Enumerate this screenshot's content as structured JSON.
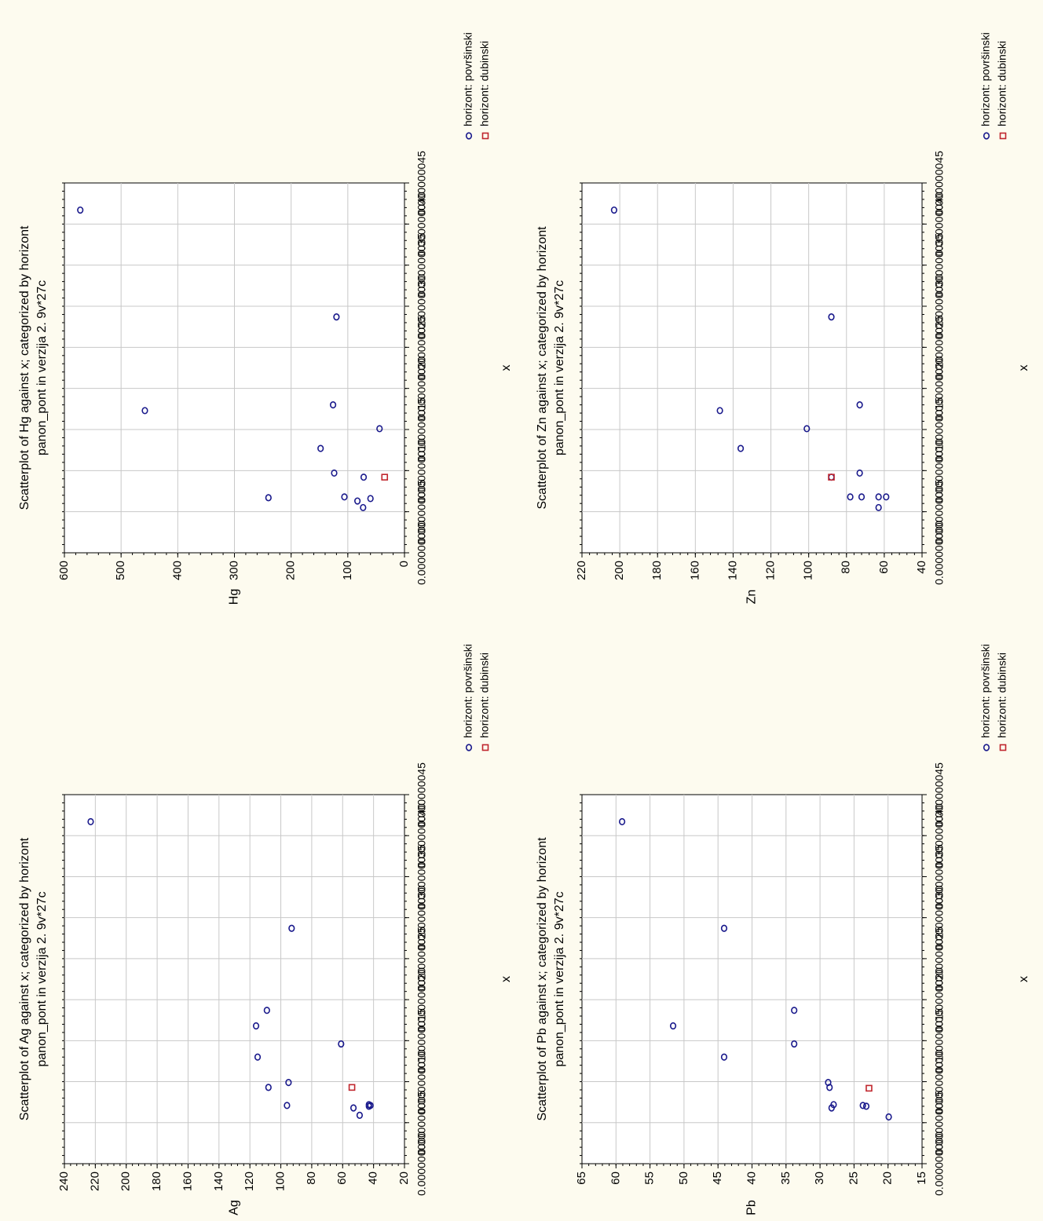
{
  "colors": {
    "panel_background": "#fdfbef",
    "plot_background": "#ffffff",
    "series_povrsinski": "#1a1a8c",
    "series_dubinski": "#c0262d",
    "grid": "#c8c8c8"
  },
  "chart_data": [
    {
      "type": "scatter",
      "title_line1": "Scatterplot of Ag against x; categorized by horizont",
      "title_line2": "panon_pont in verzija 2. 9v*27c",
      "xlabel": "x",
      "ylabel": "Ag",
      "xlim": [
        0.0,
        4.5e-08
      ],
      "ylim": [
        20,
        240
      ],
      "x_ticks": [
        "0.000000000",
        "0.000000005",
        "0.000000010",
        "0.000000015",
        "0.000000020",
        "0.000000025",
        "0.000000030",
        "0.000000035",
        "0.000000040",
        "0.000000045"
      ],
      "y_ticks": [
        "20",
        "40",
        "60",
        "80",
        "100",
        "120",
        "140",
        "160",
        "180",
        "200",
        "220",
        "240"
      ],
      "grid": true,
      "orientation": "rotated 90 degrees counter-clockwise",
      "legend_position": "right",
      "series": [
        {
          "name": "horizont: površinski",
          "marker": "circle",
          "points": [
            [
              4.17e-08,
              223
            ],
            [
              2.87e-08,
              93
            ],
            [
              1.87e-08,
              109
            ],
            [
              1.68e-08,
              116
            ],
            [
              1.46e-08,
              61
            ],
            [
              1.3e-08,
              115
            ],
            [
              9.9e-09,
              95
            ],
            [
              9.3e-09,
              108
            ],
            [
              7.1e-09,
              96
            ],
            [
              6.8e-09,
              53
            ],
            [
              5.9e-09,
              49
            ],
            [
              7.2e-09,
              43
            ],
            [
              7.1e-09,
              42
            ],
            [
              7e-09,
              43
            ]
          ]
        },
        {
          "name": "horizont: dubinski",
          "marker": "square",
          "points": [
            [
              9.3e-09,
              54
            ]
          ]
        }
      ]
    },
    {
      "type": "scatter",
      "title_line1": "Scatterplot of Hg against x; categorized by horizont",
      "title_line2": "panon_pont in verzija 2. 9v*27c",
      "xlabel": "x",
      "ylabel": "Hg",
      "xlim": [
        0.0,
        4.5e-08
      ],
      "ylim": [
        0,
        600
      ],
      "x_ticks": [
        "0.000000000",
        "0.000000005",
        "0.000000010",
        "0.000000015",
        "0.000000020",
        "0.000000025",
        "0.000000030",
        "0.000000035",
        "0.000000040",
        "0.000000045"
      ],
      "y_ticks": [
        "0",
        "100",
        "200",
        "300",
        "400",
        "500",
        "600"
      ],
      "grid": true,
      "orientation": "rotated 90 degrees counter-clockwise",
      "legend_position": "right",
      "series": [
        {
          "name": "horizont: površinski",
          "marker": "circle",
          "points": [
            [
              4.17e-08,
              572
            ],
            [
              2.87e-08,
              120
            ],
            [
              1.73e-08,
              458
            ],
            [
              1.8e-08,
              126
            ],
            [
              1.51e-08,
              44
            ],
            [
              1.27e-08,
              148
            ],
            [
              9.7e-09,
              124
            ],
            [
              9.2e-09,
              72
            ],
            [
              6.7e-09,
              240
            ],
            [
              6.8e-09,
              106
            ],
            [
              6.3e-09,
              83
            ],
            [
              6.6e-09,
              60
            ],
            [
              5.5e-09,
              73
            ]
          ]
        },
        {
          "name": "horizont: dubinski",
          "marker": "square",
          "points": [
            [
              9.2e-09,
              35
            ]
          ]
        }
      ]
    },
    {
      "type": "scatter",
      "title_line1": "Scatterplot of Pb against x; categorized by horizont",
      "title_line2": "panon_pont in verzija 2. 9v*27c",
      "xlabel": "x",
      "ylabel": "Pb",
      "xlim": [
        0.0,
        4.5e-08
      ],
      "ylim": [
        15,
        65
      ],
      "x_ticks": [
        "0.000000000",
        "0.000000005",
        "0.000000010",
        "0.000000015",
        "0.000000020",
        "0.000000025",
        "0.000000030",
        "0.000000035",
        "0.000000040",
        "0.000000045"
      ],
      "y_ticks": [
        "15",
        "20",
        "25",
        "30",
        "35",
        "40",
        "45",
        "50",
        "55",
        "60",
        "65"
      ],
      "grid": true,
      "orientation": "rotated 90 degrees counter-clockwise",
      "legend_position": "right",
      "series": [
        {
          "name": "horizont: površinski",
          "marker": "circle",
          "points": [
            [
              4.17e-08,
              59.1
            ],
            [
              2.87e-08,
              44.1
            ],
            [
              1.68e-08,
              51.6
            ],
            [
              1.87e-08,
              33.8
            ],
            [
              1.46e-08,
              33.8
            ],
            [
              1.3e-08,
              44.1
            ],
            [
              9.9e-09,
              28.8
            ],
            [
              9.3e-09,
              28.6
            ],
            [
              7.2e-09,
              28.0
            ],
            [
              6.8e-09,
              28.3
            ],
            [
              7.1e-09,
              23.7
            ],
            [
              7e-09,
              23.2
            ],
            [
              5.7e-09,
              19.9
            ]
          ]
        },
        {
          "name": "horizont: dubinski",
          "marker": "square",
          "points": [
            [
              9.2e-09,
              22.8
            ]
          ]
        }
      ]
    },
    {
      "type": "scatter",
      "title_line1": "Scatterplot of Zn against x; categorized by horizont",
      "title_line2": "panon_pont in verzija 2. 9v*27c",
      "xlabel": "x",
      "ylabel": "Zn",
      "xlim": [
        0.0,
        4.5e-08
      ],
      "ylim": [
        40,
        220
      ],
      "x_ticks": [
        "0.000000000",
        "0.000000005",
        "0.000000010",
        "0.000000015",
        "0.000000020",
        "0.000000025",
        "0.000000030",
        "0.000000035",
        "0.000000040",
        "0.000000045"
      ],
      "y_ticks": [
        "40",
        "60",
        "80",
        "100",
        "120",
        "140",
        "160",
        "180",
        "200",
        "220"
      ],
      "grid": true,
      "orientation": "rotated 90 degrees counter-clockwise",
      "legend_position": "right",
      "series": [
        {
          "name": "horizont: površinski",
          "marker": "circle",
          "points": [
            [
              4.17e-08,
              203
            ],
            [
              2.87e-08,
              88
            ],
            [
              1.73e-08,
              147
            ],
            [
              1.8e-08,
              73
            ],
            [
              1.51e-08,
              101
            ],
            [
              1.27e-08,
              136
            ],
            [
              9.7e-09,
              73
            ],
            [
              9.2e-09,
              88
            ],
            [
              6.8e-09,
              78
            ],
            [
              6.8e-09,
              72
            ],
            [
              6.8e-09,
              63
            ],
            [
              6.8e-09,
              59
            ],
            [
              5.5e-09,
              63
            ]
          ]
        },
        {
          "name": "horizont: dubinski",
          "marker": "square",
          "points": [
            [
              9.2e-09,
              88
            ]
          ]
        }
      ]
    }
  ]
}
